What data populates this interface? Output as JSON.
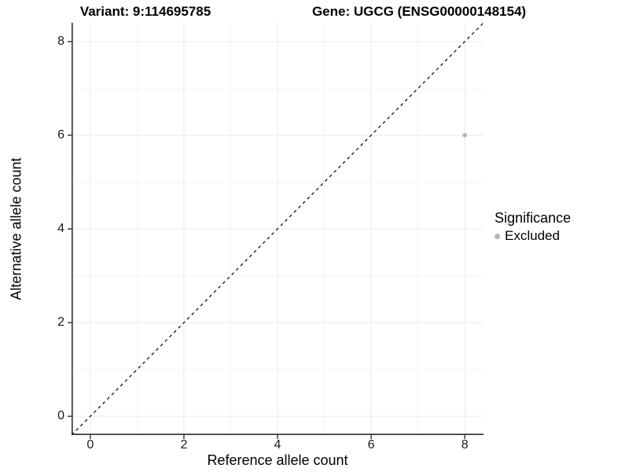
{
  "header": {
    "variant_title": "Variant: 9:114695785",
    "gene_title": "Gene: UGCG (ENSG00000148154)"
  },
  "legend": {
    "title": "Significance",
    "items": [
      {
        "label": "Excluded",
        "color": "#b4b4b4"
      }
    ]
  },
  "colors": {
    "background": "#ffffff",
    "axis": "#2f2f2f",
    "grid_major": "#e9e9e9",
    "grid_minor": "#f4f4f4",
    "point": "#b4b4b4",
    "reference_line": "#000000",
    "text": "#000000"
  },
  "chart_data": {
    "type": "scatter",
    "title": "Variant: 9:114695785 — Gene: UGCG (ENSG00000148154)",
    "xlabel": "Reference allele count",
    "ylabel": "Alternative allele count",
    "xlim": [
      -0.4,
      8.4
    ],
    "ylim": [
      -0.4,
      8.4
    ],
    "x_ticks": [
      0,
      2,
      4,
      6,
      8
    ],
    "y_ticks": [
      0,
      2,
      4,
      6,
      8
    ],
    "x_minor": [
      1,
      3,
      5,
      7
    ],
    "y_minor": [
      1,
      3,
      5,
      7
    ],
    "grid": "major+minor",
    "legend_position": "right",
    "series": [
      {
        "name": "Excluded",
        "significance": "Excluded",
        "color": "#b4b4b4",
        "marker": "circle",
        "point_radius": 2.8,
        "points": [
          {
            "x": 8,
            "y": 6
          }
        ]
      }
    ],
    "reference_line": {
      "kind": "identity",
      "slope": 1,
      "intercept": 0,
      "style": "dashed",
      "dash": "4 4",
      "color": "#000000"
    }
  }
}
